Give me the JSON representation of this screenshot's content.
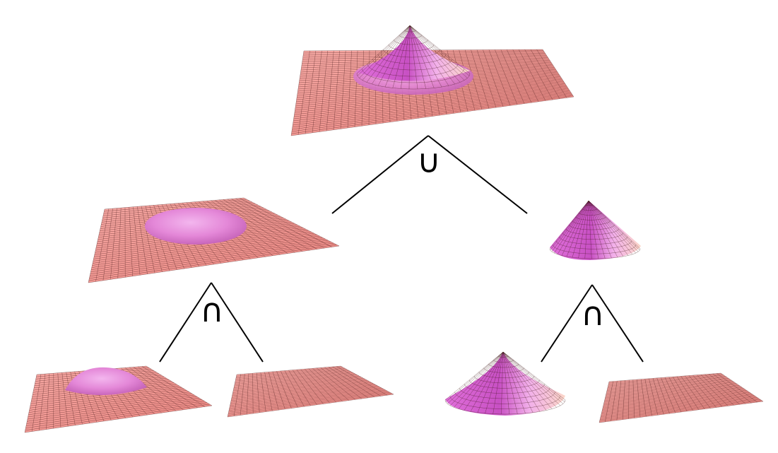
{
  "colors": {
    "plane_fill": "#f08c88",
    "plane_fill_light": "#f6aaa5",
    "grid_line": "#3a1010",
    "surface_magenta": "#d85ad2",
    "surface_pink": "#ee9ae6",
    "surface_highlight": "#fbd2f4",
    "edge_line": "#000000"
  },
  "tree": {
    "root": {
      "operation": "∪",
      "operation_name": "union"
    },
    "left": {
      "operation": "∩",
      "operation_name": "intersection"
    },
    "right": {
      "operation": "∩",
      "operation_name": "intersection"
    }
  },
  "surfaces": [
    {
      "id": "union-result",
      "shape": "plane with peaked cone"
    },
    {
      "id": "left-intermediate",
      "shape": "plane with plateau bump"
    },
    {
      "id": "right-intermediate",
      "shape": "cone"
    },
    {
      "id": "left-leaf-a",
      "shape": "plane with bump"
    },
    {
      "id": "left-leaf-b",
      "shape": "flat plane"
    },
    {
      "id": "right-leaf-a",
      "shape": "cone"
    },
    {
      "id": "right-leaf-b",
      "shape": "flat plane"
    }
  ]
}
